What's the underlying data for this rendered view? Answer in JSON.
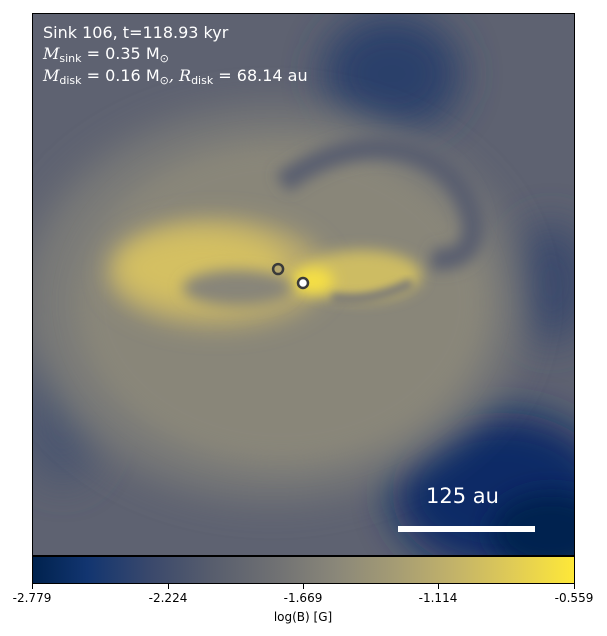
{
  "annotations": {
    "line1": "Sink 106, t=118.93 kyr",
    "m_sink_symbol": "M",
    "m_sink_sub": "sink",
    "m_sink_value": " = 0.35 M",
    "m_sink_unit_sub": "⊙",
    "m_disk_symbol": "M",
    "m_disk_sub": "disk",
    "m_disk_value": " = 0.16 M",
    "m_disk_unit_sub": "⊙",
    "r_disk_symbol": ", R",
    "r_disk_sub": "disk",
    "r_disk_value": " = 68.14 au"
  },
  "scalebar": {
    "label": "125 au"
  },
  "colorbar": {
    "label": "log(B) [G]",
    "ticks": [
      "-2.779",
      "-2.224",
      "-1.669",
      "-1.114",
      "-0.559"
    ],
    "colormap": "cividis"
  },
  "sinks": [
    {
      "name": "sink-primary",
      "ring_color": "#3a3a3a"
    },
    {
      "name": "sink-companion",
      "ring_color": "#3a3a3a"
    }
  ]
}
